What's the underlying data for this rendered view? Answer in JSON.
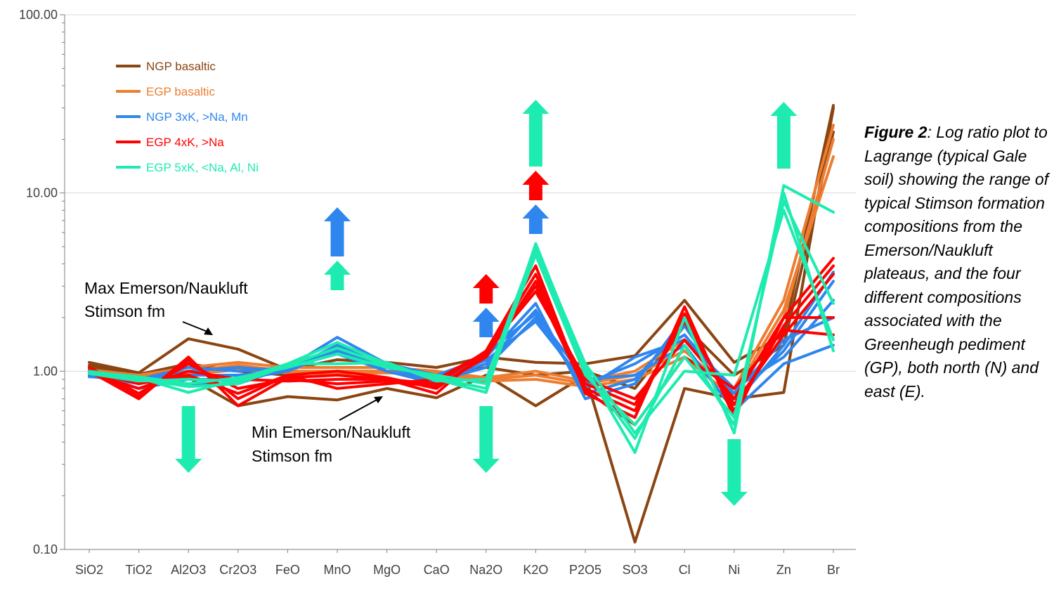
{
  "chart_data": {
    "type": "line",
    "yscale": "log",
    "ylim": [
      0.1,
      100
    ],
    "yticks": [
      "100.00",
      "10.00",
      "1.00",
      "0.10"
    ],
    "categories": [
      "SiO2",
      "TiO2",
      "Al2O3",
      "Cr2O3",
      "FeO",
      "MnO",
      "MgO",
      "CaO",
      "Na2O",
      "K2O",
      "P2O5",
      "SO3",
      "Cl",
      "Ni",
      "Zn",
      "Br"
    ],
    "legend": [
      {
        "name": "NGP basaltic",
        "color": "#8B4513"
      },
      {
        "name": "EGP basaltic",
        "color": "#ED7D31"
      },
      {
        "name": "NGP 3xK, >Na, Mn",
        "color": "#2E86EE"
      },
      {
        "name": "EGP 4xK, >Na",
        "color": "#FF0000"
      },
      {
        "name": "EGP 5xK, <Na, Al, Ni",
        "color": "#1EEBB0"
      }
    ],
    "series": [
      {
        "name": "NGP basaltic",
        "color": "#8B4513",
        "values": [
          1.12,
          0.98,
          1.52,
          1.33,
          1.02,
          1.16,
          1.12,
          1.05,
          1.2,
          1.12,
          1.1,
          1.22,
          2.5,
          1.12,
          1.6,
          31
        ]
      },
      {
        "name": "NGP basaltic",
        "color": "#8B4513",
        "values": [
          1.05,
          0.95,
          0.92,
          0.64,
          0.72,
          0.69,
          0.8,
          0.71,
          0.95,
          0.64,
          0.95,
          0.11,
          0.8,
          0.7,
          0.76,
          30
        ]
      },
      {
        "name": "NGP basaltic",
        "color": "#8B4513",
        "values": [
          1.08,
          0.96,
          1.1,
          1.0,
          0.95,
          1.0,
          1.0,
          0.95,
          1.05,
          0.95,
          1.0,
          0.8,
          1.8,
          0.95,
          1.4,
          22
        ]
      },
      {
        "name": "EGP basaltic",
        "color": "#ED7D31",
        "values": [
          1.02,
          0.95,
          1.05,
          1.12,
          1.05,
          1.05,
          1.05,
          1.0,
          0.92,
          1.0,
          0.88,
          1.0,
          1.5,
          0.8,
          2.5,
          24
        ]
      },
      {
        "name": "EGP basaltic",
        "color": "#ED7D31",
        "values": [
          1.0,
          0.93,
          1.0,
          1.08,
          1.0,
          1.0,
          1.0,
          0.98,
          0.9,
          0.95,
          0.85,
          0.95,
          1.3,
          0.75,
          2.2,
          16
        ]
      },
      {
        "name": "EGP basaltic",
        "color": "#ED7D31",
        "values": [
          0.98,
          0.92,
          0.96,
          1.02,
          0.98,
          0.97,
          0.98,
          0.95,
          0.88,
          0.9,
          0.82,
          0.9,
          1.2,
          0.7,
          2.0,
          20
        ]
      },
      {
        "name": "NGP 3xK, >Na, Mn",
        "color": "#2E86EE",
        "values": [
          0.95,
          0.9,
          1.05,
          1.0,
          1.05,
          1.55,
          1.1,
          0.95,
          1.2,
          2.4,
          0.7,
          0.85,
          2.0,
          0.65,
          1.4,
          3.6
        ]
      },
      {
        "name": "NGP 3xK, >Na, Mn",
        "color": "#2E86EE",
        "values": [
          0.94,
          0.85,
          0.95,
          0.95,
          1.02,
          1.4,
          1.05,
          0.9,
          1.1,
          2.2,
          0.75,
          0.9,
          1.8,
          0.7,
          1.3,
          3.2
        ]
      },
      {
        "name": "NGP 3xK, >Na, Mn",
        "color": "#2E86EE",
        "values": [
          0.96,
          0.8,
          0.9,
          0.9,
          1.0,
          1.35,
          1.0,
          0.88,
          1.05,
          2.0,
          0.8,
          1.2,
          1.5,
          0.8,
          1.2,
          2.5
        ]
      },
      {
        "name": "NGP 3xK, >Na, Mn",
        "color": "#2E86EE",
        "values": [
          0.95,
          0.88,
          1.0,
          1.05,
          1.0,
          1.3,
          1.08,
          0.92,
          1.15,
          1.9,
          0.85,
          1.1,
          1.6,
          0.75,
          1.5,
          2.0
        ]
      },
      {
        "name": "NGP 3xK, >Na, Mn",
        "color": "#2E86EE",
        "values": [
          0.93,
          0.9,
          0.85,
          0.85,
          1.05,
          1.25,
          1.0,
          0.85,
          1.25,
          2.1,
          0.9,
          0.95,
          1.4,
          0.6,
          1.1,
          1.4
        ]
      },
      {
        "name": "EGP 4xK, >Na",
        "color": "#FF0000",
        "values": [
          1.0,
          0.7,
          1.2,
          0.64,
          0.92,
          0.95,
          0.9,
          0.75,
          1.3,
          3.9,
          0.75,
          0.55,
          2.3,
          0.55,
          2.0,
          4.3
        ]
      },
      {
        "name": "EGP 4xK, >Na",
        "color": "#FF0000",
        "values": [
          1.02,
          0.72,
          1.15,
          0.7,
          0.95,
          1.0,
          0.92,
          0.8,
          1.25,
          3.5,
          0.8,
          0.6,
          2.1,
          0.6,
          1.8,
          3.9
        ]
      },
      {
        "name": "EGP 4xK, >Na",
        "color": "#FF0000",
        "values": [
          1.05,
          0.75,
          1.1,
          0.8,
          0.9,
          0.85,
          0.88,
          0.82,
          1.2,
          3.2,
          0.85,
          0.65,
          1.9,
          0.65,
          1.6,
          3.5
        ]
      },
      {
        "name": "EGP 4xK, >Na",
        "color": "#FF0000",
        "values": [
          0.98,
          0.8,
          1.0,
          0.9,
          0.88,
          0.9,
          0.9,
          0.85,
          1.3,
          2.8,
          0.9,
          0.7,
          1.5,
          0.7,
          2.0,
          2.0
        ]
      },
      {
        "name": "EGP 4xK, >Na",
        "color": "#FF0000",
        "values": [
          1.0,
          0.85,
          0.95,
          0.75,
          0.95,
          0.8,
          0.85,
          0.9,
          1.28,
          3.0,
          0.78,
          0.5,
          1.2,
          0.8,
          1.7,
          1.6
        ]
      },
      {
        "name": "EGP 5xK, <Na, Al, Ni",
        "color": "#1EEBB0",
        "values": [
          1.0,
          0.92,
          0.76,
          0.9,
          1.1,
          1.45,
          1.1,
          0.9,
          0.76,
          5.2,
          1.05,
          0.35,
          2.0,
          0.45,
          11,
          7.8
        ]
      },
      {
        "name": "EGP 5xK, <Na, Al, Ni",
        "color": "#1EEBB0",
        "values": [
          0.98,
          0.9,
          0.82,
          0.85,
          1.08,
          1.35,
          1.08,
          0.92,
          0.8,
          4.8,
          1.0,
          0.42,
          1.4,
          0.5,
          10,
          1.3
        ]
      },
      {
        "name": "EGP 5xK, <Na, Al, Ni",
        "color": "#1EEBB0",
        "values": [
          0.99,
          0.93,
          0.85,
          0.92,
          1.05,
          1.25,
          1.05,
          0.95,
          0.85,
          4.5,
          0.95,
          0.5,
          1.2,
          0.55,
          9,
          2.4
        ]
      },
      {
        "name": "EGP 5xK, <Na, Al, Ni",
        "color": "#1EEBB0",
        "values": [
          0.97,
          0.88,
          0.9,
          0.88,
          1.1,
          1.1,
          1.12,
          0.88,
          0.9,
          5.0,
          1.1,
          0.45,
          1.0,
          0.95,
          8,
          1.5
        ]
      }
    ],
    "arrows": [
      {
        "category": "Al2O3",
        "direction": "down",
        "color": "#1EEBB0"
      },
      {
        "category": "MnO",
        "direction": "up",
        "color": "#2E86EE"
      },
      {
        "category": "MnO",
        "direction": "up",
        "color": "#1EEBB0"
      },
      {
        "category": "Na2O",
        "direction": "up",
        "color": "#FF0000"
      },
      {
        "category": "Na2O",
        "direction": "up",
        "color": "#2E86EE"
      },
      {
        "category": "Na2O",
        "direction": "down",
        "color": "#1EEBB0"
      },
      {
        "category": "K2O",
        "direction": "up",
        "color": "#1EEBB0"
      },
      {
        "category": "K2O",
        "direction": "up",
        "color": "#FF0000"
      },
      {
        "category": "K2O",
        "direction": "up",
        "color": "#2E86EE"
      },
      {
        "category": "Ni",
        "direction": "down",
        "color": "#1EEBB0"
      },
      {
        "category": "Zn",
        "direction": "up",
        "color": "#1EEBB0"
      }
    ],
    "annotations": {
      "max_line1": "Max Emerson/Naukluft",
      "max_line2": "Stimson fm",
      "min_line1": "Min Emerson/Naukluft",
      "min_line2": "Stimson fm"
    }
  },
  "caption": {
    "label": "Figure 2",
    "text": ": Log ratio plot to Lagrange (typical Gale soil) showing the range of typical Stimson formation compositions from the Emerson/Naukluft plateaus, and the four different compositions associated with the Greenheugh pediment (GP), both north (N) and east (E)."
  }
}
